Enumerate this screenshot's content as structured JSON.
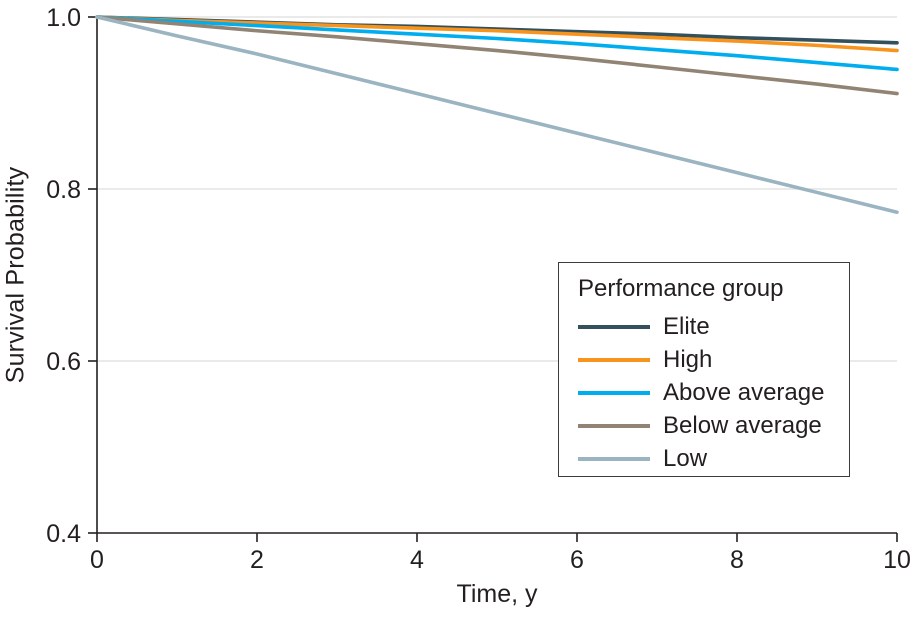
{
  "figure": {
    "x_axis_label": "Time, y",
    "y_axis_label": "Survival Probability"
  },
  "legend": {
    "title": "Performance group",
    "position": "inside-right-middle"
  },
  "colors": {
    "axis": "#231f20",
    "text": "#231f20",
    "grid": "#e4e4e4",
    "background": "#ffffff",
    "legend_border": "#3c3c3c"
  },
  "chart_data": {
    "type": "line",
    "title": "",
    "xlabel": "Time, y",
    "ylabel": "Survival Probability",
    "xlim": [
      0,
      10
    ],
    "ylim": [
      0.4,
      1.0
    ],
    "x_ticks": [
      0,
      2,
      4,
      6,
      8,
      10
    ],
    "y_ticks": [
      0.4,
      0.6,
      0.8,
      1.0
    ],
    "grid": "horizontal",
    "legend_position": "inside lower-right of plot",
    "x": [
      0,
      1,
      2,
      3,
      4,
      5,
      6,
      7,
      8,
      9,
      10
    ],
    "series": [
      {
        "name": "Elite",
        "color": "#33505d",
        "values": [
          1.0,
          0.997,
          0.994,
          0.991,
          0.989,
          0.986,
          0.983,
          0.98,
          0.976,
          0.973,
          0.97
        ]
      },
      {
        "name": "High",
        "color": "#f7941e",
        "values": [
          1.0,
          0.996,
          0.993,
          0.99,
          0.987,
          0.984,
          0.98,
          0.976,
          0.972,
          0.967,
          0.961
        ]
      },
      {
        "name": "Above average",
        "color": "#00adee",
        "values": [
          1.0,
          0.995,
          0.99,
          0.985,
          0.98,
          0.975,
          0.969,
          0.962,
          0.955,
          0.947,
          0.939
        ]
      },
      {
        "name": "Below average",
        "color": "#928474",
        "values": [
          1.0,
          0.992,
          0.984,
          0.977,
          0.969,
          0.961,
          0.952,
          0.942,
          0.932,
          0.922,
          0.911
        ]
      },
      {
        "name": "Low",
        "color": "#9bb4c1",
        "values": [
          1.0,
          0.978,
          0.957,
          0.934,
          0.911,
          0.888,
          0.865,
          0.842,
          0.819,
          0.796,
          0.773
        ]
      }
    ]
  }
}
